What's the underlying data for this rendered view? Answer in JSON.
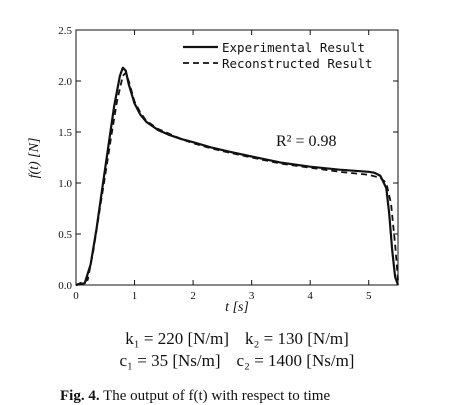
{
  "chart_data": {
    "type": "line",
    "xlabel": "t [s]",
    "ylabel": "f(t) [N]",
    "xlim": [
      0,
      5.5
    ],
    "ylim": [
      0,
      2.5
    ],
    "x_ticks": [
      0,
      1,
      2,
      3,
      4,
      5
    ],
    "y_ticks": [
      0.0,
      0.5,
      1.0,
      1.5,
      2.0,
      2.5
    ],
    "x_tick_labels": [
      "0",
      "1",
      "2",
      "3",
      "4",
      "5"
    ],
    "y_tick_labels": [
      "0.0",
      "0.5",
      "1.0",
      "1.5",
      "2.0",
      "2.5"
    ],
    "legend_position": "top-right",
    "grid": false,
    "annotation": "R² = 0.98",
    "series": [
      {
        "name": "Experimental Result",
        "style": "solid",
        "x": [
          0.0,
          0.15,
          0.25,
          0.35,
          0.45,
          0.55,
          0.65,
          0.75,
          0.8,
          0.85,
          0.9,
          1.0,
          1.1,
          1.2,
          1.4,
          1.6,
          1.8,
          2.0,
          2.3,
          2.6,
          3.0,
          3.5,
          4.0,
          4.5,
          5.0,
          5.1,
          5.2,
          5.3,
          5.35,
          5.4,
          5.45,
          5.5
        ],
        "y": [
          0.0,
          0.02,
          0.2,
          0.55,
          0.95,
          1.35,
          1.75,
          2.05,
          2.13,
          2.1,
          1.97,
          1.78,
          1.67,
          1.6,
          1.52,
          1.47,
          1.43,
          1.4,
          1.35,
          1.31,
          1.26,
          1.2,
          1.16,
          1.13,
          1.11,
          1.1,
          1.07,
          0.95,
          0.7,
          0.35,
          0.08,
          0.0
        ]
      },
      {
        "name": "Reconstructed Result",
        "style": "dashed",
        "x": [
          0.0,
          0.2,
          0.3,
          0.4,
          0.5,
          0.6,
          0.7,
          0.8,
          0.85,
          0.9,
          1.0,
          1.1,
          1.2,
          1.4,
          1.6,
          1.8,
          2.0,
          2.3,
          2.6,
          3.0,
          3.5,
          4.0,
          4.5,
          5.0,
          5.2,
          5.3,
          5.38,
          5.45,
          5.5
        ],
        "y": [
          0.0,
          0.05,
          0.35,
          0.72,
          1.08,
          1.45,
          1.8,
          2.05,
          2.08,
          2.0,
          1.8,
          1.69,
          1.61,
          1.53,
          1.48,
          1.43,
          1.39,
          1.34,
          1.3,
          1.25,
          1.19,
          1.15,
          1.11,
          1.08,
          1.05,
          1.0,
          0.8,
          0.4,
          0.05
        ]
      }
    ]
  },
  "params": {
    "line1_a": "k₁ = 220 [N/m]",
    "line1_b": "k₂ = 130 [N/m]",
    "line2_a": "c₁ = 35 [Ns/m]",
    "line2_b": "c₂ = 1400 [Ns/m]"
  },
  "caption": {
    "label": "Fig. 4.",
    "text": "The output of f(t) with respect to time"
  }
}
